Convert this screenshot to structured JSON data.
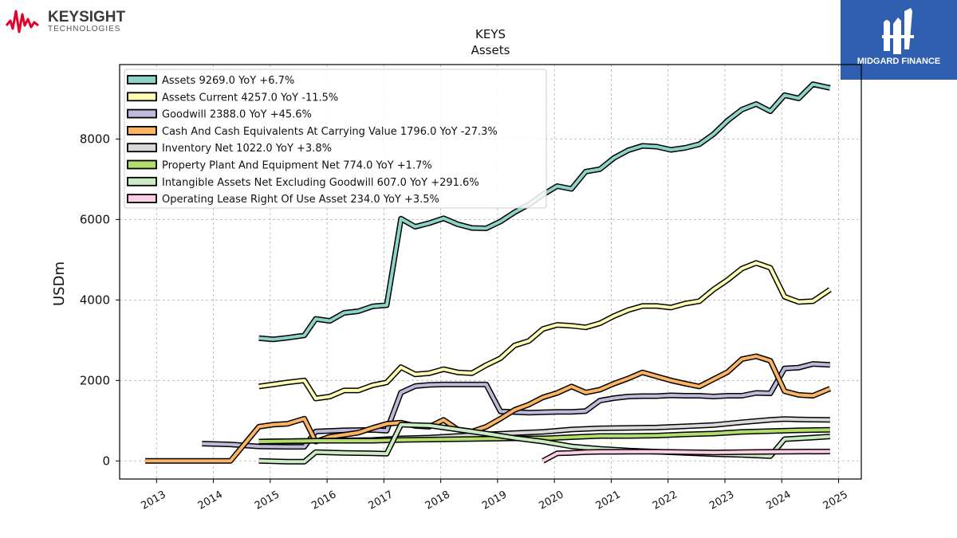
{
  "brand_left": {
    "name": "KEYSIGHT",
    "sub": "TECHNOLOGIES",
    "color": "#e4002b"
  },
  "brand_right": {
    "name": "MIDGARD FINANCE",
    "bg": "#2f5fae"
  },
  "chart_data": {
    "type": "line",
    "title": "KEYS",
    "subtitle": "Assets",
    "ylabel": "USDm",
    "xlabel": "",
    "xlim": [
      2012.35,
      2025.4
    ],
    "ylim": [
      -450,
      9850
    ],
    "xticks": [
      2013,
      2014,
      2015,
      2016,
      2017,
      2018,
      2019,
      2020,
      2021,
      2022,
      2023,
      2024,
      2025
    ],
    "yticks": [
      0,
      2000,
      4000,
      6000,
      8000
    ],
    "grid": true,
    "legend_position": "top-left",
    "series": [
      {
        "name": "Assets",
        "legend": "Assets  9269.0 YoY +6.7%",
        "color": "#8dd3c7",
        "x": [
          2014.8,
          2015.05,
          2015.3,
          2015.6,
          2015.8,
          2016.05,
          2016.3,
          2016.55,
          2016.8,
          2017.05,
          2017.3,
          2017.55,
          2017.8,
          2018.05,
          2018.3,
          2018.55,
          2018.8,
          2019.05,
          2019.3,
          2019.55,
          2019.8,
          2020.05,
          2020.3,
          2020.55,
          2020.8,
          2021.05,
          2021.3,
          2021.55,
          2021.8,
          2022.05,
          2022.3,
          2022.55,
          2022.8,
          2023.05,
          2023.3,
          2023.55,
          2023.8,
          2024.05,
          2024.3,
          2024.55,
          2024.85
        ],
        "y": [
          3050,
          3020,
          3060,
          3120,
          3530,
          3480,
          3680,
          3720,
          3840,
          3870,
          6020,
          5820,
          5910,
          6030,
          5880,
          5790,
          5780,
          5950,
          6180,
          6370,
          6620,
          6830,
          6760,
          7190,
          7250,
          7530,
          7720,
          7830,
          7810,
          7730,
          7780,
          7870,
          8120,
          8460,
          8730,
          8870,
          8690,
          9090,
          9010,
          9360,
          9269
        ]
      },
      {
        "name": "Assets Current",
        "legend": "Assets Current  4257.0 YoY -11.5%",
        "color": "#ffffb3",
        "x": [
          2014.8,
          2015.05,
          2015.3,
          2015.6,
          2015.8,
          2016.05,
          2016.3,
          2016.55,
          2016.8,
          2017.05,
          2017.3,
          2017.55,
          2017.8,
          2018.05,
          2018.3,
          2018.55,
          2018.8,
          2019.05,
          2019.3,
          2019.55,
          2019.8,
          2020.05,
          2020.3,
          2020.55,
          2020.8,
          2021.05,
          2021.3,
          2021.55,
          2021.8,
          2022.05,
          2022.3,
          2022.55,
          2022.8,
          2023.05,
          2023.3,
          2023.55,
          2023.8,
          2024.05,
          2024.3,
          2024.55,
          2024.85
        ],
        "y": [
          1850,
          1900,
          1950,
          2000,
          1550,
          1600,
          1750,
          1750,
          1880,
          1950,
          2330,
          2150,
          2180,
          2280,
          2200,
          2180,
          2380,
          2550,
          2870,
          2980,
          3280,
          3380,
          3360,
          3320,
          3420,
          3600,
          3750,
          3850,
          3850,
          3810,
          3910,
          3970,
          4260,
          4500,
          4780,
          4920,
          4800,
          4080,
          3950,
          3970,
          4257
        ]
      },
      {
        "name": "Goodwill",
        "legend": "Goodwill  2388.0 YoY +45.6%",
        "color": "#bebada",
        "x": [
          2013.8,
          2014.3,
          2014.8,
          2015.3,
          2015.6,
          2015.8,
          2016.3,
          2016.8,
          2017.05,
          2017.3,
          2017.55,
          2017.8,
          2018.05,
          2018.3,
          2018.55,
          2018.8,
          2019.05,
          2019.55,
          2020.05,
          2020.3,
          2020.55,
          2020.8,
          2021.05,
          2021.3,
          2021.55,
          2021.8,
          2022.05,
          2022.3,
          2022.55,
          2022.8,
          2023.05,
          2023.3,
          2023.55,
          2023.8,
          2024.05,
          2024.3,
          2024.55,
          2024.85
        ],
        "y": [
          430,
          410,
          360,
          350,
          350,
          730,
          760,
          770,
          750,
          1700,
          1860,
          1890,
          1900,
          1900,
          1900,
          1900,
          1230,
          1200,
          1220,
          1220,
          1240,
          1500,
          1560,
          1600,
          1610,
          1610,
          1630,
          1620,
          1620,
          1600,
          1620,
          1620,
          1690,
          1680,
          2300,
          2320,
          2410,
          2388
        ]
      },
      {
        "name": "Cash And Cash Equivalents At Carrying Value",
        "legend": "Cash And Cash Equivalents At Carrying Value  1796.0 YoY -27.3%",
        "color": "#fdb462",
        "x": [
          2012.8,
          2013.3,
          2013.8,
          2014.3,
          2014.8,
          2015.05,
          2015.3,
          2015.6,
          2015.8,
          2016.05,
          2016.3,
          2016.55,
          2016.8,
          2017.05,
          2017.3,
          2017.55,
          2017.8,
          2018.05,
          2018.3,
          2018.55,
          2018.8,
          2019.05,
          2019.3,
          2019.55,
          2019.8,
          2020.05,
          2020.3,
          2020.55,
          2020.8,
          2021.05,
          2021.3,
          2021.55,
          2021.8,
          2022.05,
          2022.3,
          2022.55,
          2022.8,
          2023.05,
          2023.3,
          2023.55,
          2023.8,
          2024.05,
          2024.3,
          2024.55,
          2024.85
        ],
        "y": [
          0,
          0,
          0,
          0,
          850,
          900,
          920,
          1050,
          480,
          600,
          650,
          700,
          820,
          920,
          950,
          870,
          850,
          1020,
          780,
          730,
          850,
          1050,
          1270,
          1400,
          1580,
          1690,
          1850,
          1700,
          1770,
          1920,
          2050,
          2200,
          2100,
          2000,
          1920,
          1850,
          2030,
          2210,
          2530,
          2600,
          2490,
          1730,
          1640,
          1620,
          1796
        ]
      },
      {
        "name": "Inventory Net",
        "legend": "Inventory Net  1022.0 YoY +3.8%",
        "color": "#d9d9d9",
        "x": [
          2014.8,
          2015.3,
          2015.8,
          2016.3,
          2016.8,
          2017.3,
          2017.8,
          2018.3,
          2018.8,
          2019.3,
          2019.8,
          2020.3,
          2020.8,
          2021.3,
          2021.8,
          2022.3,
          2022.8,
          2023.3,
          2023.8,
          2024.05,
          2024.3,
          2024.85
        ],
        "y": [
          480,
          490,
          500,
          510,
          520,
          560,
          580,
          620,
          660,
          690,
          720,
          780,
          810,
          820,
          830,
          860,
          890,
          960,
          1020,
          1040,
          1030,
          1022
        ]
      },
      {
        "name": "Property Plant And Equipment Net",
        "legend": "Property Plant And Equipment Net  774.0 YoY +1.7%",
        "color": "#b3de69",
        "x": [
          2014.8,
          2015.3,
          2015.8,
          2016.3,
          2016.8,
          2017.3,
          2017.8,
          2018.3,
          2018.8,
          2019.3,
          2019.8,
          2020.3,
          2020.8,
          2021.3,
          2021.8,
          2022.3,
          2022.8,
          2023.3,
          2023.8,
          2024.05,
          2024.3,
          2024.85
        ],
        "y": [
          480,
          490,
          500,
          500,
          500,
          520,
          530,
          540,
          550,
          560,
          560,
          590,
          620,
          620,
          630,
          660,
          680,
          720,
          740,
          750,
          760,
          774
        ]
      },
      {
        "name": "Intangible Assets Net Excluding Goodwill",
        "legend": "Intangible Assets Net Excluding Goodwill  607.0 YoY +291.6%",
        "color": "#ccebc5",
        "x": [
          2014.8,
          2015.3,
          2015.6,
          2015.8,
          2016.3,
          2016.8,
          2017.05,
          2017.3,
          2017.8,
          2018.3,
          2018.8,
          2019.3,
          2019.8,
          2020.3,
          2020.8,
          2021.3,
          2021.8,
          2022.3,
          2022.8,
          2023.3,
          2023.8,
          2024.05,
          2024.3,
          2024.55,
          2024.85
        ],
        "y": [
          0,
          -20,
          -20,
          220,
          200,
          190,
          180,
          900,
          880,
          780,
          680,
          570,
          480,
          360,
          300,
          260,
          230,
          200,
          170,
          150,
          120,
          540,
          560,
          580,
          607
        ]
      },
      {
        "name": "Operating Lease Right Of Use Asset",
        "legend": "Operating Lease Right Of Use Asset  234.0 YoY +3.5%",
        "color": "#fccde5",
        "x": [
          2019.8,
          2020.05,
          2020.3,
          2020.55,
          2020.8,
          2021.05,
          2021.3,
          2021.8,
          2022.3,
          2022.8,
          2023.3,
          2023.8,
          2024.05,
          2024.3,
          2024.85
        ],
        "y": [
          0,
          190,
          200,
          220,
          225,
          225,
          230,
          230,
          220,
          210,
          220,
          225,
          230,
          232,
          234
        ]
      }
    ]
  }
}
